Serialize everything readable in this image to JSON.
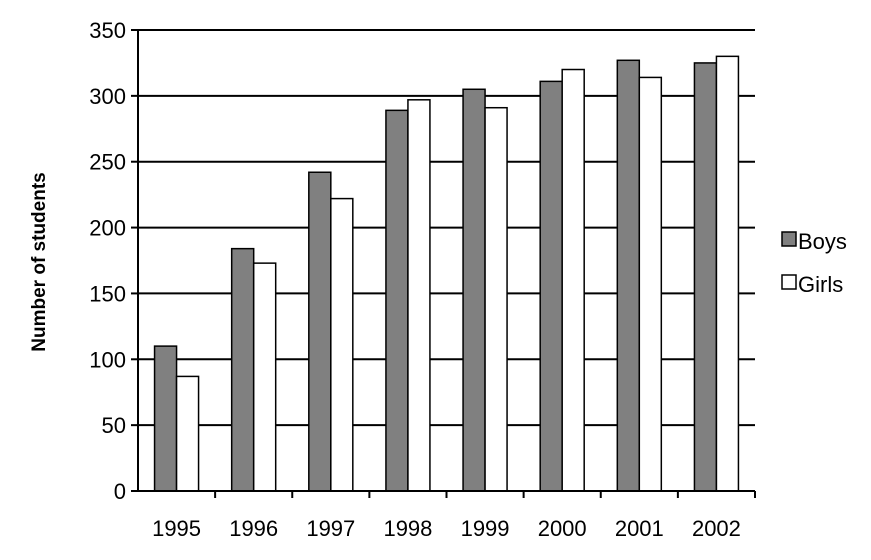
{
  "chart_data": {
    "type": "bar",
    "title": "",
    "xlabel": "",
    "ylabel": "Number of students",
    "categories": [
      "1995",
      "1996",
      "1997",
      "1998",
      "1999",
      "2000",
      "2001",
      "2002"
    ],
    "series": [
      {
        "name": "Boys",
        "color": "#808080",
        "values": [
          110,
          184,
          242,
          289,
          305,
          311,
          327,
          325
        ]
      },
      {
        "name": "Girls",
        "color": "#ffffff",
        "values": [
          87,
          173,
          222,
          297,
          291,
          320,
          314,
          330
        ]
      }
    ],
    "ylim": [
      0,
      350
    ],
    "yticks": [
      "0",
      "50",
      "100",
      "150",
      "200",
      "250",
      "300",
      "350"
    ],
    "grid": true,
    "legend_position": "right"
  }
}
